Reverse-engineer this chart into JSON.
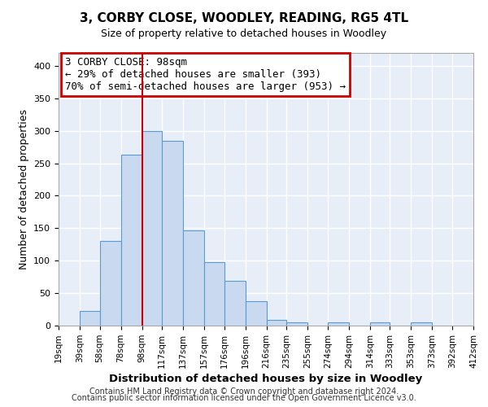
{
  "title": "3, CORBY CLOSE, WOODLEY, READING, RG5 4TL",
  "subtitle": "Size of property relative to detached houses in Woodley",
  "xlabel": "Distribution of detached houses by size in Woodley",
  "ylabel": "Number of detached properties",
  "bin_edges": [
    19,
    39,
    58,
    78,
    98,
    117,
    137,
    157,
    176,
    196,
    216,
    235,
    255,
    274,
    294,
    314,
    333,
    353,
    373,
    392,
    412
  ],
  "bar_heights": [
    0,
    22,
    130,
    263,
    300,
    284,
    147,
    98,
    69,
    37,
    9,
    5,
    0,
    5,
    0,
    5,
    0,
    5,
    0,
    0
  ],
  "bar_color": "#c9d9f0",
  "bar_edgecolor": "#5b9bd5",
  "property_line_x": 98,
  "property_line_color": "#cc0000",
  "ylim": [
    0,
    420
  ],
  "annotation_line1": "3 CORBY CLOSE: 98sqm",
  "annotation_line2": "← 29% of detached houses are smaller (393)",
  "annotation_line3": "70% of semi-detached houses are larger (953) →",
  "annotation_box_edgecolor": "#cc0000",
  "annotation_box_facecolor": "#ffffff",
  "footer_line1": "Contains HM Land Registry data © Crown copyright and database right 2024.",
  "footer_line2": "Contains public sector information licensed under the Open Government Licence v3.0.",
  "tick_labels": [
    "19sqm",
    "39sqm",
    "58sqm",
    "78sqm",
    "98sqm",
    "117sqm",
    "137sqm",
    "157sqm",
    "176sqm",
    "196sqm",
    "216sqm",
    "235sqm",
    "255sqm",
    "274sqm",
    "294sqm",
    "314sqm",
    "333sqm",
    "353sqm",
    "373sqm",
    "392sqm",
    "412sqm"
  ],
  "plot_background_color": "#e8eef8",
  "fig_background_color": "#ffffff",
  "grid_color": "#ffffff",
  "yticks": [
    0,
    50,
    100,
    150,
    200,
    250,
    300,
    350,
    400
  ],
  "title_fontsize": 11,
  "subtitle_fontsize": 9,
  "ylabel_fontsize": 9,
  "xlabel_fontsize": 9.5,
  "tick_fontsize": 7.5,
  "annotation_fontsize": 9,
  "footer_fontsize": 7
}
